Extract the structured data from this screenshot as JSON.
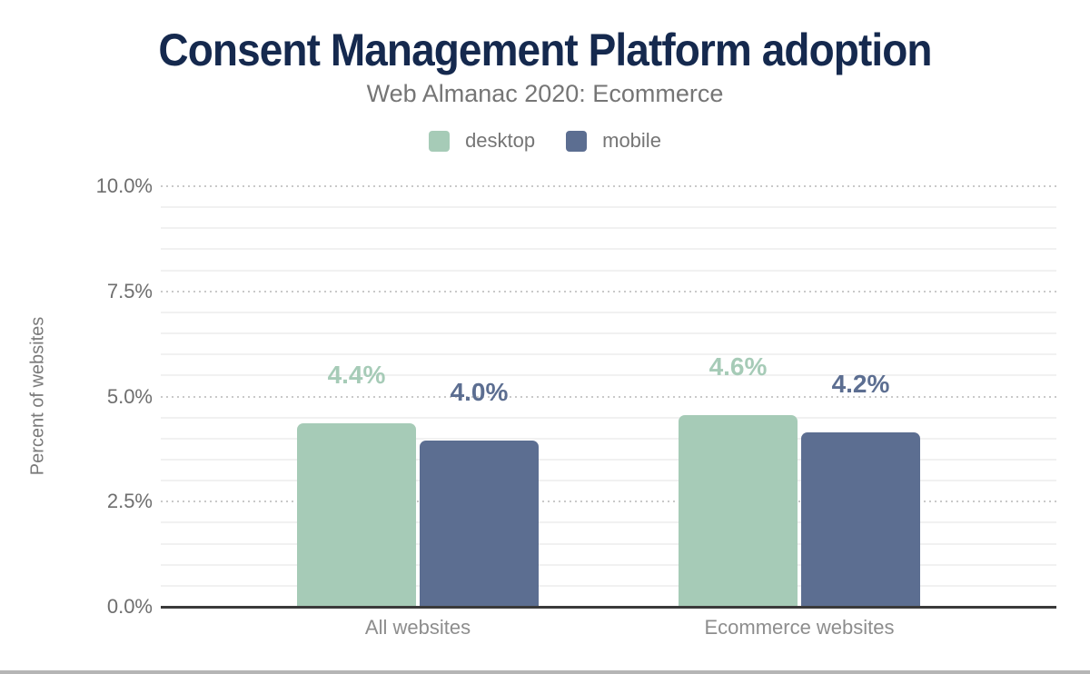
{
  "header": {
    "title": "Consent Management Platform adoption",
    "subtitle": "Web Almanac 2020: Ecommerce"
  },
  "colors": {
    "title": "#15294e",
    "subtitle": "#757575",
    "desktop": "#a6cbb7",
    "mobile": "#5c6e91",
    "axis_line": "#3a3a3a",
    "tick_label": "#6e6e6e",
    "category_label": "#8d8d8d",
    "major_gridline": "#c9c9c9",
    "minor_gridline": "#f1f1f1",
    "bottom_strip": "#b5b5b5"
  },
  "chart_data": {
    "type": "bar",
    "title": "Consent Management Platform adoption",
    "subtitle": "Web Almanac 2020: Ecommerce",
    "categories": [
      "All websites",
      "Ecommerce websites"
    ],
    "series": [
      {
        "name": "desktop",
        "color": "#a6cbb7",
        "values": [
          4.4,
          4.6
        ],
        "labels": [
          "4.4%",
          "4.6%"
        ]
      },
      {
        "name": "mobile",
        "color": "#5c6e91",
        "values": [
          4.0,
          4.2
        ],
        "labels": [
          "4.0%",
          "4.2%"
        ]
      }
    ],
    "xlabel": "",
    "ylabel": "Percent of websites",
    "ylim": [
      0,
      10
    ],
    "yticks": [
      {
        "value": 0,
        "label": "0.0%"
      },
      {
        "value": 2.5,
        "label": "2.5%"
      },
      {
        "value": 5,
        "label": "5.0%"
      },
      {
        "value": 7.5,
        "label": "7.5%"
      },
      {
        "value": 10,
        "label": "10.0%"
      }
    ],
    "grid": {
      "major_every": 2.5,
      "minor_every": 0.5,
      "major_style": "dotted",
      "minor_style": "solid"
    },
    "legend_position": "top"
  }
}
